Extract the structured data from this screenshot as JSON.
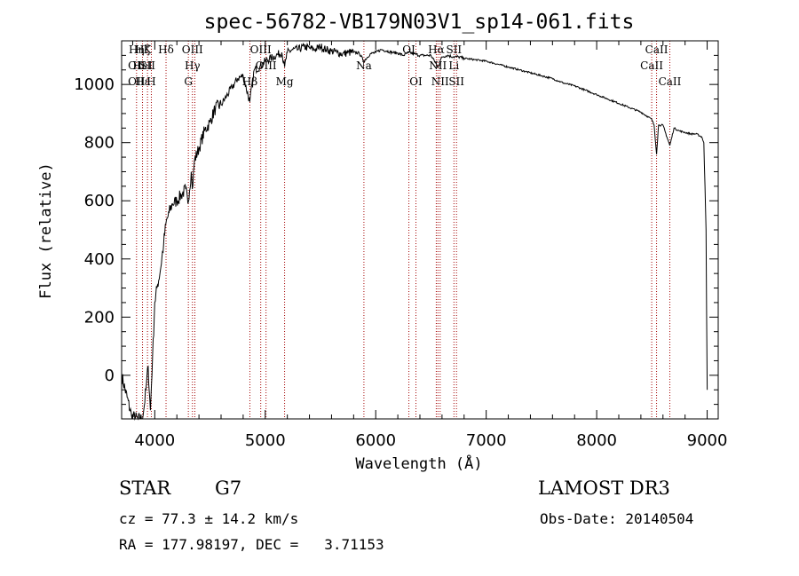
{
  "chart_data": {
    "type": "line",
    "title": "spec-56782-VB179N03V1_sp14-061.fits",
    "xlabel": "Wavelength (Å)",
    "ylabel": "Flux (relative)",
    "xlim": [
      3700,
      9100
    ],
    "ylim": [
      -150,
      1150
    ],
    "xticks": [
      4000,
      5000,
      6000,
      7000,
      8000,
      9000
    ],
    "yticks": [
      0,
      200,
      400,
      600,
      800,
      1000
    ],
    "grid": false,
    "series": [
      {
        "name": "flux",
        "x": [
          3700,
          3790,
          3850,
          3880,
          3900,
          3920,
          3940,
          3960,
          3980,
          4000,
          4020,
          4050,
          4080,
          4100,
          4130,
          4160,
          4200,
          4240,
          4280,
          4300,
          4330,
          4340,
          4360,
          4400,
          4450,
          4500,
          4550,
          4600,
          4650,
          4700,
          4750,
          4800,
          4860,
          4900,
          4950,
          5000,
          5050,
          5100,
          5150,
          5175,
          5200,
          5250,
          5300,
          5350,
          5400,
          5450,
          5500,
          5550,
          5600,
          5650,
          5700,
          5750,
          5800,
          5850,
          5893,
          5950,
          6000,
          6050,
          6100,
          6150,
          6200,
          6250,
          6300,
          6350,
          6400,
          6450,
          6500,
          6563,
          6600,
          6650,
          6700,
          6750,
          6800,
          6900,
          7000,
          7100,
          7200,
          7300,
          7400,
          7500,
          7600,
          7700,
          7800,
          7900,
          8000,
          8100,
          8200,
          8300,
          8400,
          8498,
          8520,
          8542,
          8560,
          8600,
          8662,
          8700,
          8750,
          8800,
          8850,
          8900,
          8950,
          8970,
          8990,
          9000
        ],
        "y": [
          0,
          -140,
          -150,
          -150,
          -120,
          -50,
          30,
          -120,
          60,
          250,
          300,
          360,
          450,
          520,
          560,
          590,
          600,
          620,
          640,
          590,
          700,
          640,
          740,
          780,
          840,
          870,
          920,
          930,
          960,
          990,
          1020,
          1030,
          940,
          1050,
          1060,
          1080,
          1090,
          1100,
          1110,
          1060,
          1110,
          1120,
          1120,
          1130,
          1125,
          1120,
          1130,
          1120,
          1115,
          1110,
          1105,
          1110,
          1110,
          1108,
          1080,
          1105,
          1110,
          1120,
          1115,
          1110,
          1108,
          1100,
          1110,
          1105,
          1100,
          1100,
          1100,
          1060,
          1095,
          1100,
          1095,
          1095,
          1090,
          1085,
          1080,
          1070,
          1060,
          1050,
          1040,
          1030,
          1020,
          1005,
          995,
          980,
          965,
          950,
          935,
          920,
          905,
          880,
          860,
          760,
          860,
          860,
          790,
          850,
          840,
          835,
          830,
          830,
          820,
          800,
          500,
          -50
        ]
      }
    ],
    "lines": [
      {
        "x": 3835,
        "labels": [
          {
            "text": "Hη",
            "row": 0
          },
          {
            "text": "OII",
            "row": 1
          },
          {
            "text": "OII",
            "row": 2
          }
        ]
      },
      {
        "x": 3889,
        "labels": [
          {
            "text": "Hζ",
            "row": 0
          },
          {
            "text": "HeI",
            "row": 1
          },
          {
            "text": "Hε",
            "row": 2
          }
        ]
      },
      {
        "x": 3934,
        "labels": [
          {
            "text": "K",
            "row": 0
          },
          {
            "text": "SII",
            "row": 1
          }
        ]
      },
      {
        "x": 3969,
        "labels": [
          {
            "text": "H",
            "row": 2
          }
        ]
      },
      {
        "x": 4102,
        "labels": [
          {
            "text": "Hδ",
            "row": 0
          }
        ]
      },
      {
        "x": 4304,
        "labels": [
          {
            "text": "G",
            "row": 2
          }
        ]
      },
      {
        "x": 4341,
        "labels": [
          {
            "text": "OIII",
            "row": 0
          },
          {
            "text": "Hγ",
            "row": 1
          }
        ]
      },
      {
        "x": 4363,
        "labels": []
      },
      {
        "x": 4861,
        "labels": [
          {
            "text": "Hβ",
            "row": 2
          }
        ]
      },
      {
        "x": 4959,
        "labels": [
          {
            "text": "OIII",
            "row": 0
          }
        ]
      },
      {
        "x": 5007,
        "labels": [
          {
            "text": "OIII",
            "row": 1
          }
        ]
      },
      {
        "x": 5175,
        "labels": [
          {
            "text": "Mg",
            "row": 2
          }
        ]
      },
      {
        "x": 5893,
        "labels": [
          {
            "text": "Na",
            "row": 1
          }
        ]
      },
      {
        "x": 6300,
        "labels": [
          {
            "text": "OI",
            "row": 0
          }
        ]
      },
      {
        "x": 6364,
        "labels": [
          {
            "text": "OI",
            "row": 2
          }
        ]
      },
      {
        "x": 6548,
        "labels": [
          {
            "text": "Hα",
            "row": 0
          }
        ]
      },
      {
        "x": 6563,
        "labels": [
          {
            "text": "NII",
            "row": 1
          }
        ]
      },
      {
        "x": 6583,
        "labels": [
          {
            "text": "NII",
            "row": 2
          }
        ]
      },
      {
        "x": 6708,
        "labels": [
          {
            "text": "SII",
            "row": 0
          },
          {
            "text": "Li",
            "row": 1
          }
        ]
      },
      {
        "x": 6731,
        "labels": [
          {
            "text": "SII",
            "row": 2
          }
        ]
      },
      {
        "x": 8498,
        "labels": [
          {
            "text": "CaII",
            "row": 1
          }
        ]
      },
      {
        "x": 8542,
        "labels": [
          {
            "text": "CaII",
            "row": 0
          }
        ]
      },
      {
        "x": 8662,
        "labels": [
          {
            "text": "CaII",
            "row": 2
          }
        ]
      }
    ]
  },
  "info": {
    "object_class": "STAR",
    "subclass": "G7",
    "survey": "LAMOST DR3",
    "cz": "cz = 77.3 ± 14.2 km/s",
    "obs_date": "Obs-Date: 20140504",
    "radec": "RA = 177.98197, DEC =   3.71153"
  },
  "colors": {
    "line": "#000000",
    "marker": "#a30000",
    "background": "#ffffff"
  }
}
